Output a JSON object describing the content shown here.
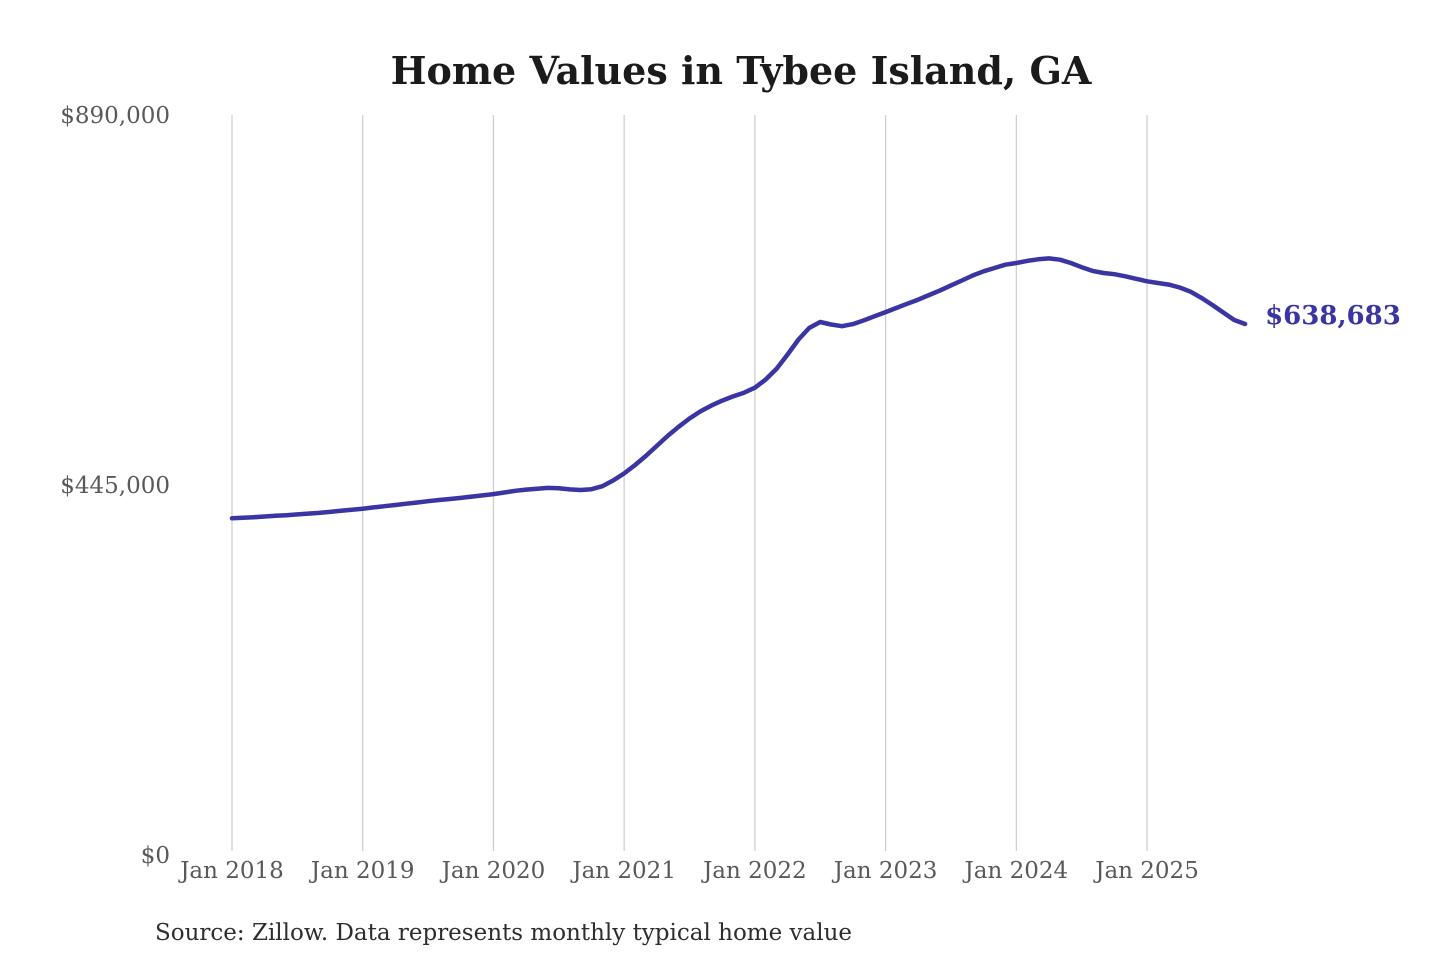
{
  "chart_data": {
    "type": "line",
    "title": "Home Values in Tybee Island, GA",
    "series_name": "Monthly typical home value",
    "xlabel": "",
    "ylabel": "",
    "ylim": [
      0,
      890000
    ],
    "grid": "vertical-only",
    "legend": "none",
    "line_color": "#3b35a3",
    "end_label_color": "#3b35a3",
    "end_label": "$638,683",
    "end_value": 638683,
    "y_tick_labels": [
      "$0",
      "$445,000",
      "$890,000"
    ],
    "y_tick_values": [
      0,
      445000,
      890000
    ],
    "x_tick_labels": [
      "Jan 2018",
      "Jan 2019",
      "Jan 2020",
      "Jan 2021",
      "Jan 2022",
      "Jan 2023",
      "Jan 2024",
      "Jan 2025"
    ],
    "months": [
      "2018-01",
      "2018-02",
      "2018-03",
      "2018-04",
      "2018-05",
      "2018-06",
      "2018-07",
      "2018-08",
      "2018-09",
      "2018-10",
      "2018-11",
      "2018-12",
      "2019-01",
      "2019-02",
      "2019-03",
      "2019-04",
      "2019-05",
      "2019-06",
      "2019-07",
      "2019-08",
      "2019-09",
      "2019-10",
      "2019-11",
      "2019-12",
      "2020-01",
      "2020-02",
      "2020-03",
      "2020-04",
      "2020-05",
      "2020-06",
      "2020-07",
      "2020-08",
      "2020-09",
      "2020-10",
      "2020-11",
      "2020-12",
      "2021-01",
      "2021-02",
      "2021-03",
      "2021-04",
      "2021-05",
      "2021-06",
      "2021-07",
      "2021-08",
      "2021-09",
      "2021-10",
      "2021-11",
      "2021-12",
      "2022-01",
      "2022-02",
      "2022-03",
      "2022-04",
      "2022-05",
      "2022-06",
      "2022-07",
      "2022-08",
      "2022-09",
      "2022-10",
      "2022-11",
      "2022-12",
      "2023-01",
      "2023-02",
      "2023-03",
      "2023-04",
      "2023-05",
      "2023-06",
      "2023-07",
      "2023-08",
      "2023-09",
      "2023-10",
      "2023-11",
      "2023-12",
      "2024-01",
      "2024-02",
      "2024-03",
      "2024-04",
      "2024-05",
      "2024-06",
      "2024-07",
      "2024-08",
      "2024-09",
      "2024-10",
      "2024-11",
      "2024-12",
      "2025-01",
      "2025-02",
      "2025-03",
      "2025-04",
      "2025-05",
      "2025-06",
      "2025-07",
      "2025-08",
      "2025-09",
      "2025-10"
    ],
    "values": [
      405000,
      405600,
      406300,
      407100,
      407900,
      408700,
      409600,
      410600,
      411500,
      412700,
      414000,
      415200,
      416500,
      418000,
      419500,
      421000,
      422500,
      424000,
      425500,
      427000,
      428200,
      429500,
      431000,
      432500,
      434000,
      436000,
      438000,
      439500,
      440500,
      441500,
      441000,
      439700,
      439000,
      440000,
      443500,
      450500,
      459000,
      469000,
      480000,
      492000,
      504000,
      515000,
      525000,
      533500,
      540500,
      546500,
      551500,
      556000,
      562000,
      572000,
      585000,
      602000,
      620000,
      634000,
      641000,
      638000,
      636000,
      638500,
      643000,
      648000,
      653000,
      658000,
      663000,
      668000,
      673500,
      679000,
      685000,
      691000,
      697000,
      702000,
      706000,
      710000,
      712000,
      714500,
      716500,
      717500,
      716000,
      712000,
      707000,
      702500,
      700000,
      698500,
      696000,
      693000,
      690000,
      688000,
      686000,
      682500,
      677500,
      670000,
      661500,
      652500,
      643500,
      638683
    ],
    "source_note": "Source: Zillow. Data represents monthly typical home value"
  }
}
